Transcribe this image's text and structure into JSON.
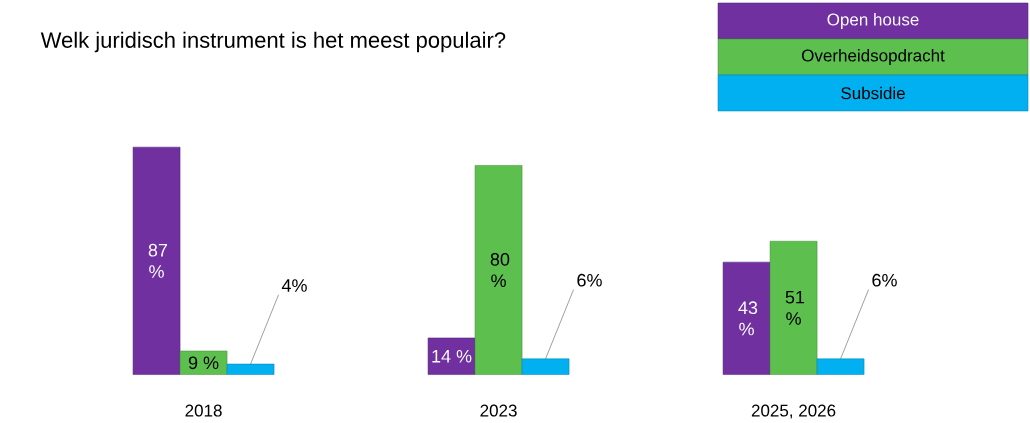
{
  "chart_data": {
    "type": "bar",
    "title": "Welk juridisch instrument is het meest populair?",
    "categories": [
      "2018",
      "2023",
      "2025, 2026"
    ],
    "legend": "top right",
    "tick_labels": "x",
    "series": [
      {
        "name": "Open house",
        "color": "#7030a0",
        "values": [
          87,
          14,
          43
        ],
        "value_labels": [
          "87 %",
          "14 %",
          "43 %"
        ]
      },
      {
        "name": "Overheidsopdracht",
        "color": "#5cbf4e",
        "values": [
          9,
          80,
          51
        ],
        "value_labels": [
          "9 %",
          "80 %",
          "51 %"
        ]
      },
      {
        "name": "Subsidie",
        "color": "#00b0f0",
        "values": [
          4,
          6,
          6
        ],
        "value_labels": [
          "4%",
          "6%",
          "6%"
        ]
      }
    ]
  }
}
